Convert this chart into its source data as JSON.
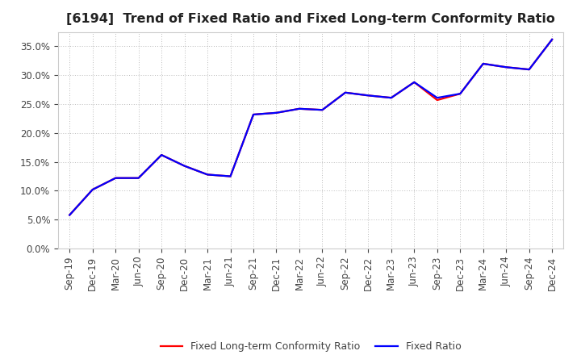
{
  "title": "[6194]  Trend of Fixed Ratio and Fixed Long-term Conformity Ratio",
  "x_labels": [
    "Sep-19",
    "Dec-19",
    "Mar-20",
    "Jun-20",
    "Sep-20",
    "Dec-20",
    "Mar-21",
    "Jun-21",
    "Sep-21",
    "Dec-21",
    "Mar-22",
    "Jun-22",
    "Sep-22",
    "Dec-22",
    "Mar-23",
    "Jun-23",
    "Sep-23",
    "Dec-23",
    "Mar-24",
    "Jun-24",
    "Sep-24",
    "Dec-24"
  ],
  "fixed_ratio": [
    0.058,
    0.102,
    0.122,
    0.122,
    0.162,
    0.143,
    0.128,
    0.125,
    0.232,
    0.235,
    0.242,
    0.24,
    0.27,
    0.265,
    0.261,
    0.288,
    0.261,
    0.268,
    0.32,
    0.314,
    0.31,
    0.362
  ],
  "fixed_lt_ratio": [
    0.058,
    0.102,
    0.122,
    0.122,
    0.162,
    0.143,
    0.128,
    0.125,
    0.232,
    0.235,
    0.242,
    0.24,
    0.27,
    0.265,
    0.261,
    0.288,
    0.257,
    0.268,
    0.32,
    0.314,
    0.31,
    0.362
  ],
  "fixed_ratio_color": "#0000ff",
  "fixed_lt_ratio_color": "#ff0000",
  "ylim": [
    0.0,
    0.375
  ],
  "yticks": [
    0.0,
    0.05,
    0.1,
    0.15,
    0.2,
    0.25,
    0.3,
    0.35
  ],
  "bg_color": "#ffffff",
  "plot_bg_color": "#ffffff",
  "grid_color": "#bbbbbb",
  "legend_fixed_ratio": "Fixed Ratio",
  "legend_fixed_lt_ratio": "Fixed Long-term Conformity Ratio",
  "line_width": 1.6,
  "title_fontsize": 11.5,
  "tick_fontsize": 8.5
}
